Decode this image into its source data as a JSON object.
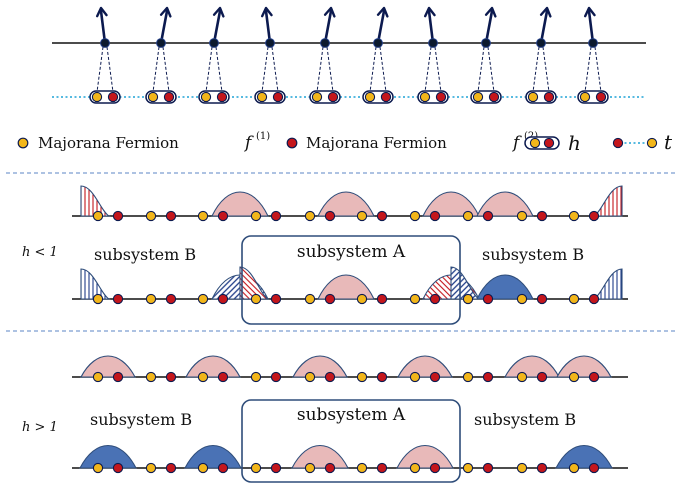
{
  "legend": {
    "f1_label": "Majorana Fermion",
    "f1_symbol": "f",
    "f1_sup": "(1)",
    "f2_label": "Majorana Fermion",
    "f2_symbol": "f",
    "f2_sup": "(2)",
    "h_symbol": "h",
    "t_symbol": "t"
  },
  "panel_small_h": {
    "condition": "h < 1",
    "subsystem_a": "subsystem A",
    "subsystem_b_left": "subsystem B",
    "subsystem_b_right": "subsystem B"
  },
  "panel_large_h": {
    "condition": "h > 1",
    "subsystem_a": "subsystem A",
    "subsystem_b_left": "subsystem B",
    "subsystem_b_right": "subsystem B"
  },
  "colors": {
    "yellow_fermion": "#f2b61a",
    "red_fermion": "#c4161c",
    "navy": "#0c1a4f",
    "pink_bump": "#e8b9b9",
    "blue_bump": "#4a72b5",
    "bond_blue": "#1fa3d6",
    "divider": "#5b84c4",
    "box": "#2f4d7a"
  }
}
